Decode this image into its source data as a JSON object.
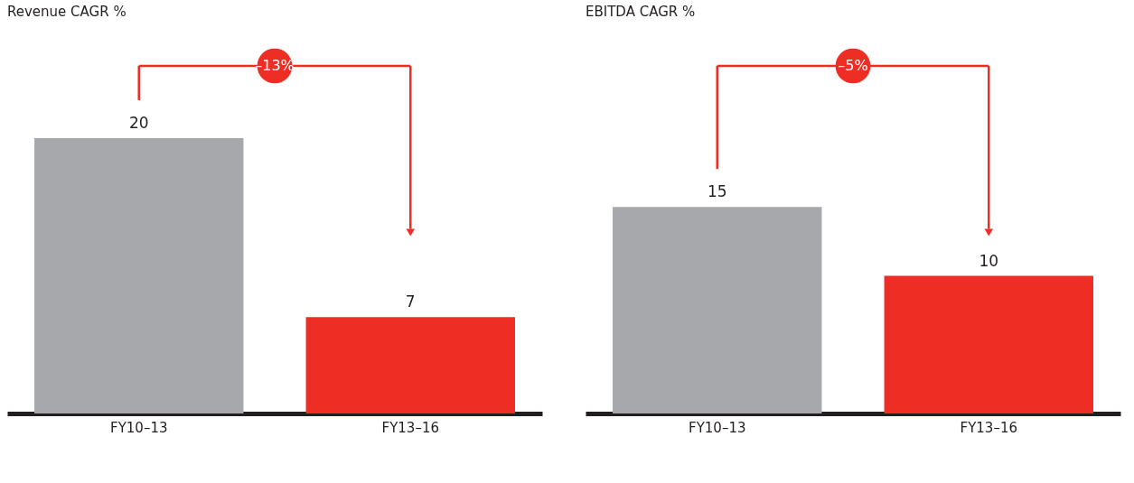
{
  "chart_data": [
    {
      "type": "bar",
      "title": "Revenue CAGR %",
      "categories": [
        "FY10–13",
        "FY13–16"
      ],
      "values": [
        20,
        7
      ],
      "colors": [
        "#a7a8ab",
        "#ee2d24"
      ],
      "data_labels": true,
      "annotations": [
        "–13%"
      ]
    },
    {
      "type": "bar",
      "title": "EBITDA CAGR %",
      "categories": [
        "FY10–13",
        "FY13–16"
      ],
      "values": [
        15,
        10
      ],
      "colors": [
        "#a7a8ab",
        "#ee2d24"
      ],
      "data_labels": true,
      "annotations": [
        "–5%"
      ]
    }
  ]
}
